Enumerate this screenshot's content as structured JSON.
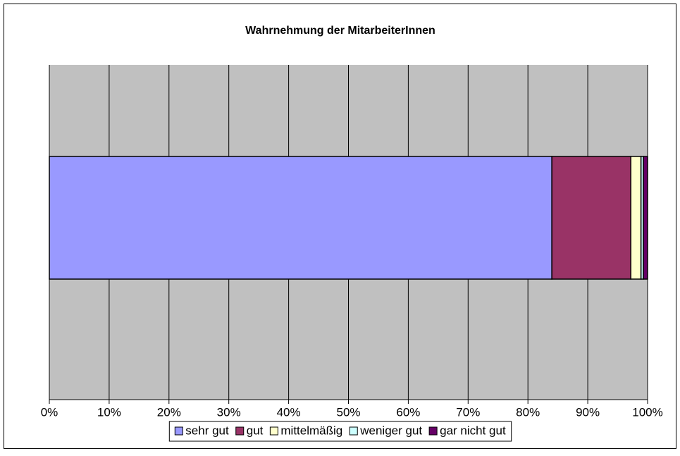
{
  "chart_data": {
    "type": "stacked-bar-horizontal",
    "title": "Wahrnehmung der MitarbeiterInnen",
    "series": [
      {
        "name": "sehr gut",
        "color": "#9999ff",
        "values": [
          84.0
        ]
      },
      {
        "name": "gut",
        "color": "#993366",
        "values": [
          13.2
        ]
      },
      {
        "name": "mittelmäßig",
        "color": "#ffffcc",
        "values": [
          1.7
        ]
      },
      {
        "name": "weniger gut",
        "color": "#ccffff",
        "values": [
          0.4
        ]
      },
      {
        "name": "gar nicht gut",
        "color": "#660066",
        "values": [
          0.7
        ]
      }
    ],
    "xlim": [
      0,
      100
    ],
    "xticks": [
      {
        "value": 0,
        "label": "0%"
      },
      {
        "value": 10,
        "label": "10%"
      },
      {
        "value": 20,
        "label": "20%"
      },
      {
        "value": 30,
        "label": "30%"
      },
      {
        "value": 40,
        "label": "40%"
      },
      {
        "value": 50,
        "label": "50%"
      },
      {
        "value": 60,
        "label": "60%"
      },
      {
        "value": 70,
        "label": "70%"
      },
      {
        "value": 80,
        "label": "80%"
      },
      {
        "value": 90,
        "label": "90%"
      },
      {
        "value": 100,
        "label": "100%"
      }
    ],
    "grid": true,
    "plot_background": "#c0c0c0",
    "legend": "bottom"
  }
}
